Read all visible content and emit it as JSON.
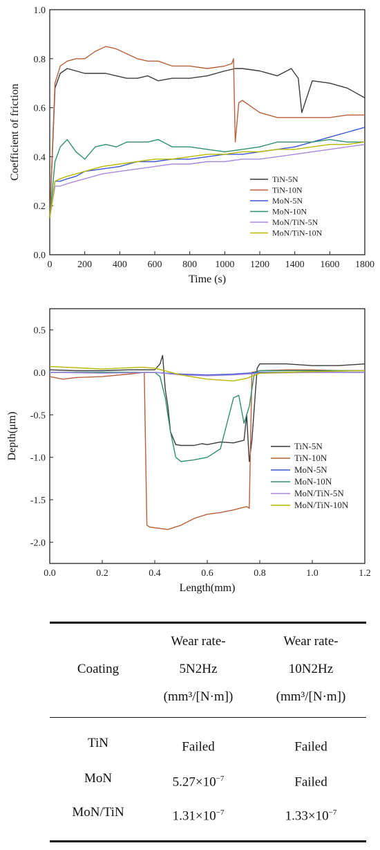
{
  "chart_data": [
    {
      "type": "line",
      "xlabel": "Time (s)",
      "ylabel": "Coefficient of friction",
      "xlim": [
        0,
        1800
      ],
      "ylim": [
        0.0,
        1.0
      ],
      "xticks": [
        "0",
        "200",
        "400",
        "600",
        "800",
        "1000",
        "1200",
        "1400",
        "1600",
        "1800"
      ],
      "yticks": [
        "0.0",
        "0.2",
        "0.4",
        "0.6",
        "0.8",
        "1.0"
      ],
      "legend_position": "lower-right",
      "series": [
        {
          "name": "TiN-5N",
          "color": "#3a3a3a",
          "x": [
            0,
            30,
            60,
            100,
            150,
            200,
            260,
            320,
            380,
            440,
            500,
            560,
            620,
            700,
            800,
            900,
            1000,
            1060,
            1100,
            1200,
            1300,
            1380,
            1420,
            1440,
            1500,
            1600,
            1700,
            1800
          ],
          "y": [
            0.15,
            0.68,
            0.74,
            0.76,
            0.75,
            0.74,
            0.74,
            0.74,
            0.73,
            0.72,
            0.72,
            0.73,
            0.71,
            0.72,
            0.72,
            0.73,
            0.75,
            0.76,
            0.76,
            0.75,
            0.73,
            0.76,
            0.72,
            0.58,
            0.71,
            0.7,
            0.68,
            0.64
          ]
        },
        {
          "name": "TiN-10N",
          "color": "#b8603a",
          "x": [
            0,
            30,
            60,
            100,
            150,
            200,
            260,
            320,
            380,
            440,
            500,
            560,
            620,
            700,
            800,
            900,
            1000,
            1040,
            1050,
            1060,
            1080,
            1100,
            1200,
            1300,
            1400,
            1500,
            1600,
            1700,
            1800
          ],
          "y": [
            0.15,
            0.7,
            0.77,
            0.79,
            0.8,
            0.8,
            0.83,
            0.85,
            0.84,
            0.82,
            0.8,
            0.79,
            0.79,
            0.77,
            0.77,
            0.76,
            0.77,
            0.78,
            0.8,
            0.46,
            0.62,
            0.63,
            0.58,
            0.56,
            0.56,
            0.56,
            0.56,
            0.57,
            0.57
          ]
        },
        {
          "name": "MoN-5N",
          "color": "#3b55d6",
          "x": [
            0,
            30,
            60,
            100,
            150,
            200,
            300,
            400,
            500,
            600,
            700,
            800,
            900,
            1000,
            1100,
            1200,
            1300,
            1400,
            1500,
            1600,
            1700,
            1800
          ],
          "y": [
            0.15,
            0.3,
            0.3,
            0.31,
            0.32,
            0.34,
            0.35,
            0.36,
            0.38,
            0.38,
            0.39,
            0.39,
            0.4,
            0.41,
            0.41,
            0.42,
            0.43,
            0.44,
            0.46,
            0.48,
            0.5,
            0.52
          ]
        },
        {
          "name": "MoN-10N",
          "color": "#2f8f6a",
          "x": [
            0,
            30,
            60,
            100,
            150,
            200,
            260,
            320,
            380,
            440,
            500,
            560,
            620,
            700,
            800,
            900,
            1000,
            1100,
            1200,
            1300,
            1400,
            1500,
            1600,
            1700,
            1800
          ],
          "y": [
            0.15,
            0.38,
            0.44,
            0.47,
            0.42,
            0.39,
            0.44,
            0.45,
            0.44,
            0.46,
            0.46,
            0.46,
            0.47,
            0.44,
            0.44,
            0.43,
            0.42,
            0.43,
            0.44,
            0.46,
            0.46,
            0.46,
            0.47,
            0.46,
            0.46
          ]
        },
        {
          "name": "MoN/TiN-5N",
          "color": "#a888dc",
          "x": [
            0,
            30,
            60,
            100,
            150,
            200,
            300,
            400,
            500,
            600,
            700,
            800,
            900,
            1000,
            1100,
            1200,
            1300,
            1400,
            1500,
            1600,
            1700,
            1800
          ],
          "y": [
            0.15,
            0.28,
            0.28,
            0.29,
            0.3,
            0.31,
            0.33,
            0.34,
            0.35,
            0.36,
            0.37,
            0.37,
            0.38,
            0.38,
            0.39,
            0.39,
            0.4,
            0.41,
            0.42,
            0.43,
            0.44,
            0.45
          ]
        },
        {
          "name": "MoN/TiN-10N",
          "color": "#b8b800",
          "x": [
            0,
            30,
            60,
            100,
            150,
            200,
            300,
            400,
            500,
            600,
            700,
            800,
            900,
            1000,
            1100,
            1200,
            1300,
            1400,
            1500,
            1600,
            1700,
            1800
          ],
          "y": [
            0.15,
            0.3,
            0.31,
            0.32,
            0.33,
            0.34,
            0.36,
            0.37,
            0.38,
            0.39,
            0.39,
            0.4,
            0.41,
            0.41,
            0.42,
            0.42,
            0.43,
            0.43,
            0.44,
            0.45,
            0.45,
            0.46
          ]
        }
      ]
    },
    {
      "type": "line",
      "xlabel": "Length(mm)",
      "ylabel": "Depth(μm)",
      "xlim": [
        0.0,
        1.2
      ],
      "ylim": [
        -2.25,
        0.75
      ],
      "xticks": [
        "0.0",
        "0.2",
        "0.4",
        "0.6",
        "0.8",
        "1.0",
        "1.2"
      ],
      "yticks": [
        "0.5",
        "0.0",
        "-0.5",
        "-1.0",
        "-1.5",
        "-2.0"
      ],
      "legend_position": "lower-right",
      "series": [
        {
          "name": "TiN-5N",
          "color": "#3a3a3a",
          "x": [
            0.0,
            0.1,
            0.2,
            0.3,
            0.4,
            0.42,
            0.43,
            0.44,
            0.45,
            0.46,
            0.48,
            0.5,
            0.55,
            0.58,
            0.6,
            0.65,
            0.7,
            0.74,
            0.75,
            0.76,
            0.77,
            0.79,
            0.8,
            0.9,
            1.0,
            1.1,
            1.2
          ],
          "y": [
            0.03,
            0.02,
            0.02,
            0.03,
            0.03,
            0.1,
            0.2,
            -0.2,
            -0.4,
            -0.7,
            -0.85,
            -0.86,
            -0.86,
            -0.84,
            -0.85,
            -0.82,
            -0.83,
            -0.8,
            -0.5,
            -1.05,
            -0.8,
            0.05,
            0.1,
            0.1,
            0.08,
            0.08,
            0.1
          ]
        },
        {
          "name": "TiN-10N",
          "color": "#b8603a",
          "x": [
            0.0,
            0.05,
            0.1,
            0.2,
            0.3,
            0.36,
            0.37,
            0.38,
            0.4,
            0.45,
            0.5,
            0.55,
            0.6,
            0.65,
            0.7,
            0.75,
            0.76,
            0.77,
            0.8,
            0.9,
            1.0,
            1.1,
            1.2
          ],
          "y": [
            -0.05,
            -0.08,
            -0.06,
            -0.05,
            -0.02,
            0.0,
            -1.8,
            -1.82,
            -1.83,
            -1.85,
            -1.8,
            -1.72,
            -1.67,
            -1.65,
            -1.62,
            -1.58,
            -1.6,
            0.0,
            0.02,
            0.03,
            0.03,
            0.02,
            0.02
          ]
        },
        {
          "name": "MoN-5N",
          "color": "#3b55d6",
          "x": [
            0.0,
            0.2,
            0.4,
            0.5,
            0.6,
            0.7,
            0.8,
            1.0,
            1.2
          ],
          "y": [
            0.0,
            0.0,
            0.0,
            -0.02,
            -0.03,
            -0.02,
            0.0,
            0.0,
            0.0
          ]
        },
        {
          "name": "MoN-10N",
          "color": "#2f8f6a",
          "x": [
            0.0,
            0.2,
            0.4,
            0.42,
            0.44,
            0.46,
            0.48,
            0.5,
            0.55,
            0.6,
            0.65,
            0.7,
            0.72,
            0.74,
            0.76,
            0.78,
            0.8,
            1.0,
            1.2
          ],
          "y": [
            0.0,
            0.0,
            0.0,
            -0.05,
            -0.3,
            -0.7,
            -1.0,
            -1.05,
            -1.03,
            -1.0,
            -0.9,
            -0.3,
            -0.27,
            -0.6,
            -0.4,
            0.0,
            0.02,
            0.02,
            0.02
          ]
        },
        {
          "name": "MoN/TiN-5N",
          "color": "#a888dc",
          "x": [
            0.0,
            0.2,
            0.4,
            0.5,
            0.6,
            0.7,
            0.8,
            1.0,
            1.2
          ],
          "y": [
            0.0,
            -0.01,
            0.0,
            -0.03,
            -0.04,
            -0.03,
            -0.01,
            0.0,
            0.0
          ]
        },
        {
          "name": "MoN/TiN-10N",
          "color": "#b8b800",
          "x": [
            0.0,
            0.2,
            0.35,
            0.4,
            0.5,
            0.6,
            0.7,
            0.75,
            0.8,
            0.9,
            1.0,
            1.2
          ],
          "y": [
            0.07,
            0.04,
            0.06,
            0.05,
            -0.03,
            -0.08,
            -0.1,
            -0.07,
            -0.01,
            0.0,
            0.01,
            0.02
          ]
        }
      ]
    },
    {
      "type": "table",
      "columns": [
        "Coating",
        "Wear rate-5N2Hz (mm³/[N·m])",
        "Wear rate-10N2Hz (mm³/[N·m])"
      ],
      "rows": [
        [
          "TiN",
          "Failed",
          "Failed"
        ],
        [
          "MoN",
          "5.27×10⁻⁷",
          "Failed"
        ],
        [
          "MoN/TiN",
          "1.31×10⁻⁷",
          "1.33×10⁻⁷"
        ]
      ]
    }
  ],
  "table": {
    "header": {
      "coating": "Coating",
      "col1_line1": "Wear rate-",
      "col1_line2": "5N2Hz",
      "col1_line3": "(mm³/[N·m])",
      "col2_line1": "Wear rate-",
      "col2_line2": "10N2Hz",
      "col2_line3": "(mm³/[N·m])"
    },
    "rows": [
      {
        "coating": "TiN",
        "v1_mant": "Failed",
        "v1_exp": "",
        "v2_mant": "Failed",
        "v2_exp": ""
      },
      {
        "coating": "MoN",
        "v1_mant": "5.27×10",
        "v1_exp": "−7",
        "v2_mant": "Failed",
        "v2_exp": ""
      },
      {
        "coating": "MoN/TiN",
        "v1_mant": "1.31×10",
        "v1_exp": "−7",
        "v2_mant": "1.33×10",
        "v2_exp": "−7"
      }
    ]
  }
}
